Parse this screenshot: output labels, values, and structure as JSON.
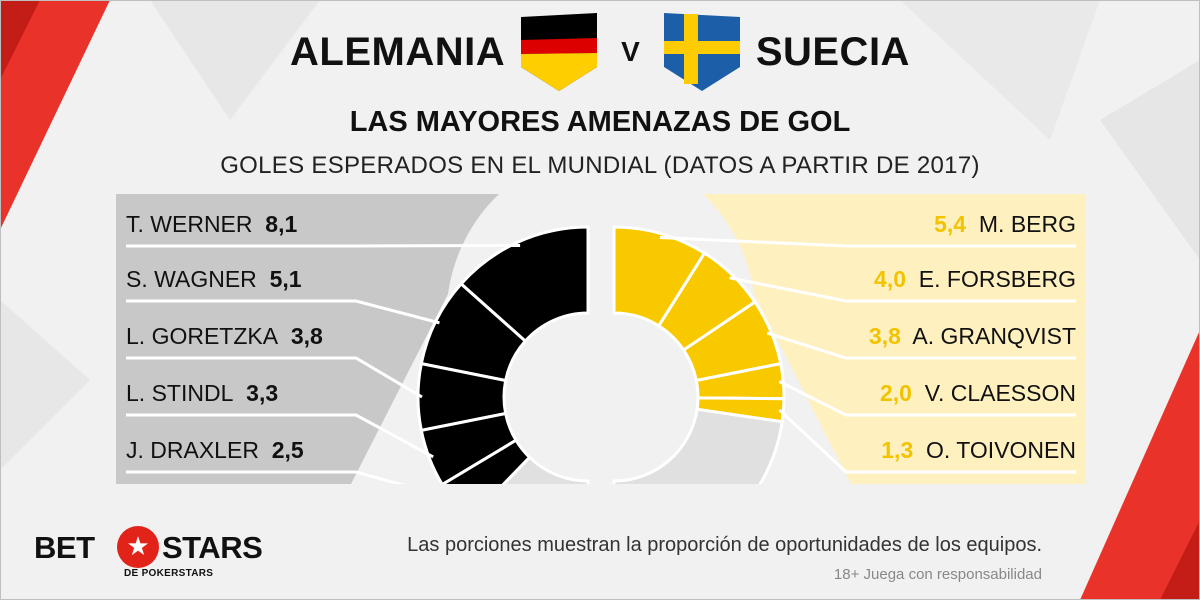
{
  "header": {
    "team_home": "ALEMANIA",
    "vs": "V",
    "team_away": "SUECIA",
    "home_flag_icon": "germany-flag-icon",
    "away_flag_icon": "sweden-flag-icon"
  },
  "colors": {
    "germany_slice": "#000000",
    "sweden_slice": "#f9c900",
    "remainder_slice": "#e0e0e0",
    "left_panel": "#c8c8c8",
    "right_panel": "#fff0c0",
    "sweden_value": "#f2c300",
    "accent_red": "#e2231a"
  },
  "chart_data": {
    "type": "pie",
    "title": "LAS MAYORES AMENAZAS DE GOL",
    "subtitle": "GOLES ESPERADOS EN EL MUNDIAL (DATOS A PARTIR DE 2017)",
    "series": [
      {
        "name": "ALEMANIA",
        "labels": [
          "T. WERNER",
          "S. WAGNER",
          "L. GORETZKA",
          "L. STINDL",
          "J. DRAXLER"
        ],
        "values": [
          8.1,
          5.1,
          3.8,
          3.3,
          2.5
        ],
        "value_labels": [
          "8,1",
          "5,1",
          "3,8",
          "3,3",
          "2,5"
        ]
      },
      {
        "name": "SUECIA",
        "labels": [
          "M. BERG",
          "E. FORSBERG",
          "A. GRANQVIST",
          "V. CLAESSON",
          "O. TOIVONEN"
        ],
        "values": [
          5.4,
          4.0,
          3.8,
          2.0,
          1.3
        ],
        "value_labels": [
          "5,4",
          "4,0",
          "3,8",
          "2,0",
          "1,3"
        ]
      }
    ],
    "half_circle_scale_total": 30.2
  },
  "footer": {
    "note": "Las porciones muestran la proporción de oportunidades de los equipos.",
    "disclaimer": "18+ Juega con responsabilidad",
    "logo_left": "BET",
    "logo_right": "STARS",
    "logo_sub": "DE POKERSTARS",
    "logo_icon": "star-icon"
  }
}
